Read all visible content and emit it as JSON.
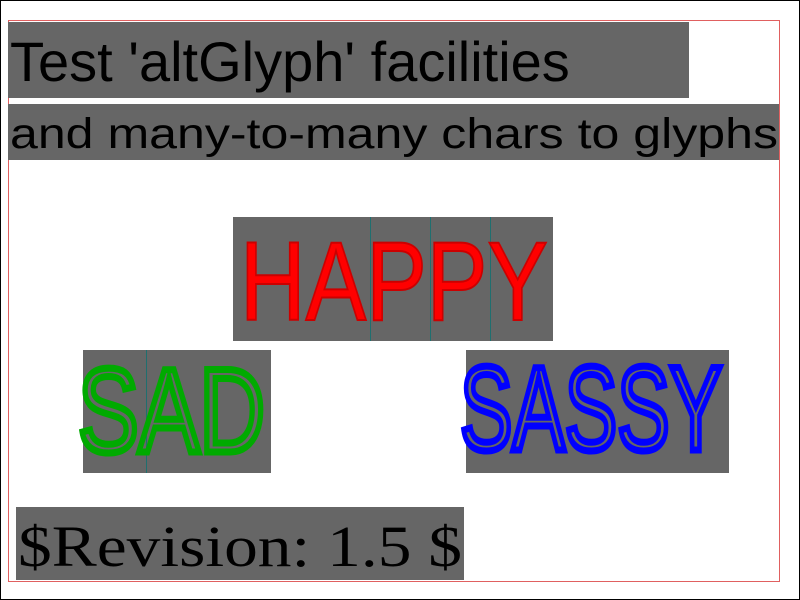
{
  "header": {
    "title": "Test 'altGlyph' facilities",
    "subtitle": "and many-to-many chars to glyphs"
  },
  "words": {
    "happy": "HAPPY",
    "sad": "SAD",
    "sassy": "SASSY"
  },
  "footer": {
    "revision": "$Revision: 1.5 $"
  }
}
